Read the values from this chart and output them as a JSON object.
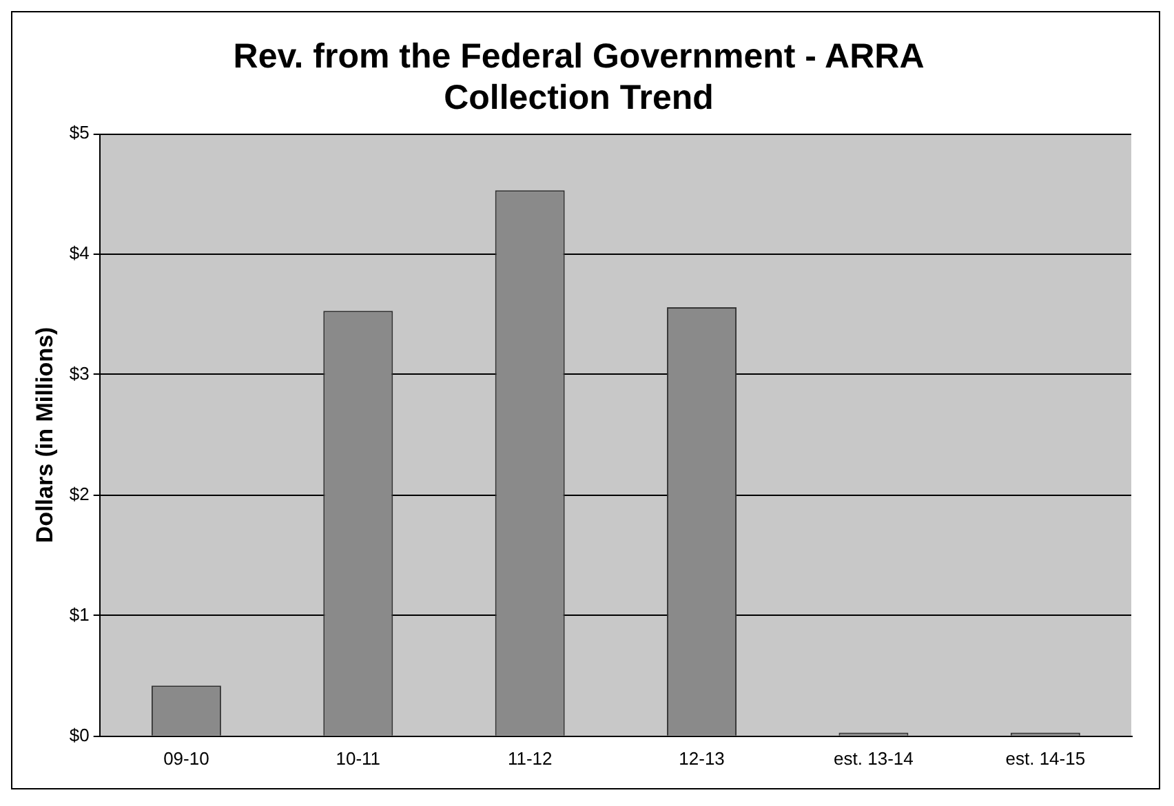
{
  "chart_data": {
    "type": "bar",
    "title": "Rev. from the Federal Government - ARRA Collection Trend",
    "ylabel": "Dollars (in Millions)",
    "categories": [
      "09-10",
      "10-11",
      "11-12",
      "12-13",
      "est. 13-14",
      "est. 14-15"
    ],
    "values": [
      0.42,
      3.53,
      4.53,
      3.56,
      0.03,
      0.03
    ],
    "color": "#8a8a8a",
    "ylim": [
      0,
      5
    ],
    "yticks": [
      {
        "value": 0,
        "label": "$0"
      },
      {
        "value": 1,
        "label": "$1"
      },
      {
        "value": 2,
        "label": "$2"
      },
      {
        "value": 3,
        "label": "$3"
      },
      {
        "value": 4,
        "label": "$4"
      },
      {
        "value": 5,
        "label": "$5"
      }
    ],
    "grid": "y",
    "legend": false
  }
}
